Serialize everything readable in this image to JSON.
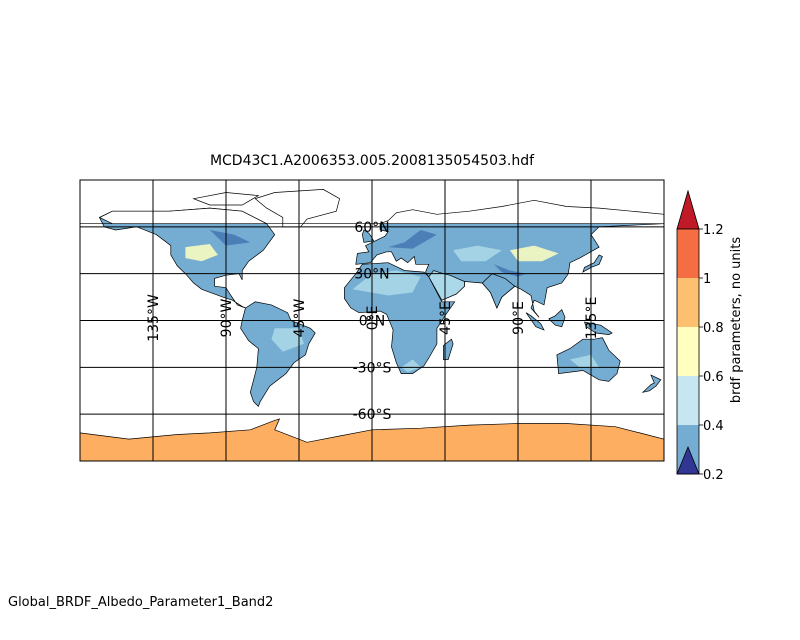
{
  "figure": {
    "title": "MCD43C1.A2006353.005.2008135054503.hdf",
    "footer_label": "Global_BRDF_Albedo_Parameter1_Band2"
  },
  "map": {
    "projection": "equirectangular",
    "lon_range": [
      -180,
      180
    ],
    "lat_range": [
      -90,
      90
    ],
    "meridians": [
      {
        "lon": -135,
        "label": "135°W"
      },
      {
        "lon": -90,
        "label": "90°W"
      },
      {
        "lon": -45,
        "label": "45°W"
      },
      {
        "lon": 0,
        "label": "0°E"
      },
      {
        "lon": 45,
        "label": "45°E"
      },
      {
        "lon": 90,
        "label": "90°E"
      },
      {
        "lon": 135,
        "label": "135°E"
      }
    ],
    "parallels": [
      {
        "lat": 60,
        "label": "60°N"
      },
      {
        "lat": 30,
        "label": "30°N"
      },
      {
        "lat": 0,
        "label": "0°N"
      },
      {
        "lat": -30,
        "label": "-30°S"
      },
      {
        "lat": -60,
        "label": "-60°S"
      }
    ],
    "colors": {
      "ocean": "#ffffff",
      "land_default": "#74add1",
      "land_high": "#abd9e9",
      "snow_ice": "#fdae61",
      "low": "#4575b4",
      "coast": "#000000"
    }
  },
  "colorbar": {
    "label": "brdf parameters, no units",
    "ticks": [
      "0.2",
      "0.4",
      "0.6",
      "0.8",
      "1",
      "1.2"
    ],
    "colors": [
      "#313695",
      "#74add1",
      "#c6e6f1",
      "#ffffbf",
      "#fdc070",
      "#f46d43",
      "#c01a28"
    ],
    "extend": "both"
  }
}
